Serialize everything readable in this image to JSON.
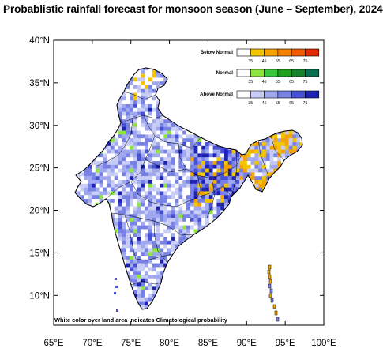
{
  "title": "Probablistic rainfall forecast for monsoon season (June – September), 2024",
  "axes": {
    "lon_ticks": [
      "65°E",
      "70°E",
      "75°E",
      "80°E",
      "85°E",
      "90°E",
      "95°E",
      "100°E"
    ],
    "lat_ticks": [
      "40°N",
      "35°N",
      "30°N",
      "25°N",
      "20°N",
      "15°N",
      "10°N"
    ],
    "lon_range": [
      65,
      100
    ],
    "lat_range": [
      6.5,
      40
    ]
  },
  "legend": [
    {
      "label": "Below Normal",
      "colors": [
        "#ffffff",
        "#f4c400",
        "#f4a300",
        "#f28000",
        "#ef5a00",
        "#e52a00"
      ],
      "ticks": [
        "35",
        "45",
        "55",
        "65",
        "75"
      ]
    },
    {
      "label": "Normal",
      "colors": [
        "#ffffff",
        "#8ce63c",
        "#3cc83c",
        "#1ea01e",
        "#148228",
        "#0a6e50"
      ],
      "ticks": [
        "35",
        "45",
        "55",
        "65",
        "75"
      ]
    },
    {
      "label": "Above Normal",
      "colors": [
        "#ffffff",
        "#c8cdf5",
        "#a0a8f0",
        "#7882e6",
        "#4650d7",
        "#1e23b4"
      ],
      "ticks": [
        "35",
        "45",
        "55",
        "65",
        "75"
      ]
    }
  ],
  "note": "White color over land area indicates Climatological probability"
}
